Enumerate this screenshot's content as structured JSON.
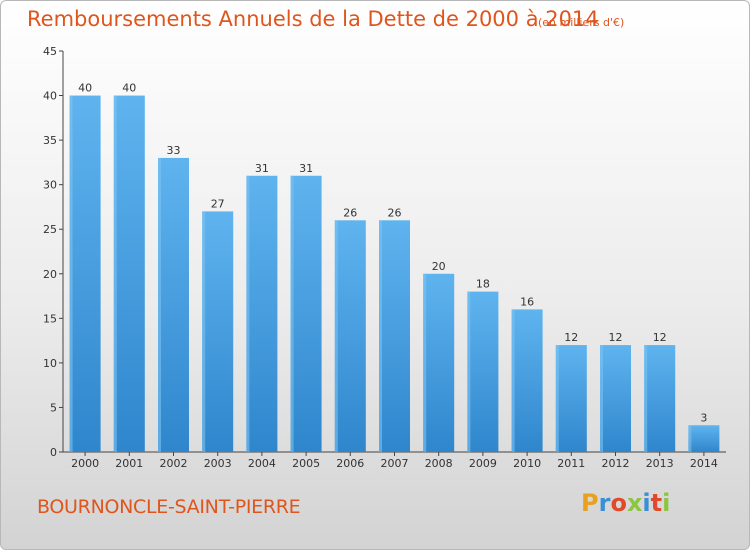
{
  "chart_data": {
    "type": "bar",
    "title": "Remboursements Annuels de la Dette de 2000 à 2014",
    "unit_note": "(en milliers d'€)",
    "categories": [
      "2000",
      "2001",
      "2002",
      "2003",
      "2004",
      "2005",
      "2006",
      "2007",
      "2008",
      "2009",
      "2010",
      "2011",
      "2012",
      "2013",
      "2014"
    ],
    "values": [
      40,
      40,
      33,
      27,
      31,
      31,
      26,
      26,
      20,
      18,
      16,
      12,
      12,
      12,
      3
    ],
    "ylim": [
      0,
      45
    ],
    "yticks": [
      0,
      5,
      10,
      15,
      20,
      25,
      30,
      35,
      40,
      45
    ],
    "xlabel": "",
    "ylabel": "",
    "grid": false,
    "bar_color": "#4fa8e8",
    "bar_color_dark": "#2f86cc"
  },
  "footer": {
    "commune": "BOURNONCLE-SAINT-PIERRE",
    "logo_text": "Proxiti",
    "logo_colors": [
      "#e8a020",
      "#3a8fd6",
      "#e04a2a",
      "#8cc63f",
      "#3a8fd6",
      "#e04a2a",
      "#8cc63f"
    ]
  },
  "colors": {
    "title": "#e0551c",
    "axis": "#333333"
  }
}
